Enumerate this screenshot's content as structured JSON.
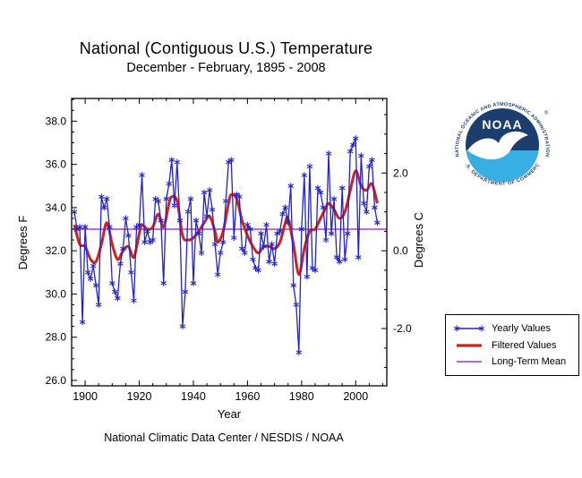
{
  "header": {
    "title": "National (Contiguous U.S.) Temperature",
    "subtitle": "December - February, 1895 - 2008"
  },
  "footer": {
    "xlabel": "Year",
    "caption": "National Climatic Data Center / NESDIS / NOAA"
  },
  "axis_labels": {
    "left": "Degrees F",
    "right": "Degrees C"
  },
  "legend": {
    "items": [
      {
        "label": "Yearly Values",
        "style": "line-asterisk",
        "color": "#2222cc"
      },
      {
        "label": "Filtered Values",
        "style": "thick-line",
        "color": "#cc2222"
      },
      {
        "label": "Long-Term Mean",
        "style": "line",
        "color": "#9933cc"
      }
    ]
  },
  "logo": {
    "acronym": "NOAA",
    "arc_top": "NATIONAL OCEANIC AND ATMOSPHERIC ADMINISTRATION",
    "arc_bottom": "U.S. DEPARTMENT OF COMMERCE",
    "registered": "®",
    "navy": "#1c3e6e",
    "light_blue": "#38afe3"
  },
  "chart_data": {
    "type": "line",
    "title": "National (Contiguous U.S.) Temperature",
    "subtitle": "December - February, 1895 - 2008",
    "xlabel": "Year",
    "ylabel_left": "Degrees F",
    "ylabel_right": "Degrees C",
    "xlim": [
      1895,
      2011.5
    ],
    "ylim_f": [
      25.75,
      39.05
    ],
    "x_ticks_major": [
      1900,
      1920,
      1940,
      1960,
      1980,
      2000
    ],
    "x_minor_step": 5,
    "y_ticks_f": [
      26.0,
      28.0,
      30.0,
      32.0,
      34.0,
      36.0,
      38.0
    ],
    "y_minor_step_f": 0.5,
    "y_ticks_c": [
      -2.0,
      0.0,
      2.0
    ],
    "y_minor_step_c": 0.5,
    "c_axis_conversion": "C = (F - 32) / 1.8",
    "grid": false,
    "legend_position": "outside-right-bottom",
    "long_term_mean_f": 33.0,
    "colors": {
      "yearly": "#2222cc",
      "filtered": "#cc2222",
      "mean": "#9933cc"
    },
    "years": [
      1896,
      1897,
      1898,
      1899,
      1900,
      1901,
      1902,
      1903,
      1904,
      1905,
      1906,
      1907,
      1908,
      1909,
      1910,
      1911,
      1912,
      1913,
      1914,
      1915,
      1916,
      1917,
      1918,
      1919,
      1920,
      1921,
      1922,
      1923,
      1924,
      1925,
      1926,
      1927,
      1928,
      1929,
      1930,
      1931,
      1932,
      1933,
      1934,
      1935,
      1936,
      1937,
      1938,
      1939,
      1940,
      1941,
      1942,
      1943,
      1944,
      1945,
      1946,
      1947,
      1948,
      1949,
      1950,
      1951,
      1952,
      1953,
      1954,
      1955,
      1956,
      1957,
      1958,
      1959,
      1960,
      1961,
      1962,
      1963,
      1964,
      1965,
      1966,
      1967,
      1968,
      1969,
      1970,
      1971,
      1972,
      1973,
      1974,
      1975,
      1976,
      1977,
      1978,
      1979,
      1980,
      1981,
      1982,
      1983,
      1984,
      1985,
      1986,
      1987,
      1988,
      1989,
      1990,
      1991,
      1992,
      1993,
      1994,
      1995,
      1996,
      1997,
      1998,
      1999,
      2000,
      2001,
      2002,
      2003,
      2004,
      2005,
      2006,
      2007,
      2008
    ],
    "series": [
      {
        "name": "Yearly Values",
        "units": "degrees F",
        "values": [
          33.8,
          33.0,
          33.1,
          28.7,
          33.1,
          31.0,
          30.7,
          31.3,
          30.4,
          29.5,
          34.5,
          34.0,
          34.4,
          33.1,
          30.5,
          30.1,
          29.8,
          31.4,
          32.1,
          33.5,
          32.7,
          31.0,
          29.7,
          33.1,
          33.2,
          35.5,
          32.4,
          32.9,
          32.4,
          32.5,
          34.4,
          34.3,
          33.4,
          30.5,
          34.4,
          35.1,
          36.2,
          34.1,
          36.1,
          33.4,
          28.5,
          30.1,
          33.8,
          34.4,
          30.5,
          33.4,
          32.8,
          31.9,
          34.7,
          33.6,
          34.8,
          33.9,
          32.3,
          30.9,
          31.9,
          32.4,
          34.3,
          36.1,
          36.2,
          32.6,
          34.6,
          34.5,
          32.1,
          31.9,
          33.2,
          33.0,
          31.6,
          31.2,
          31.1,
          32.8,
          32.2,
          33.2,
          31.5,
          32.3,
          31.4,
          32.8,
          32.9,
          33.7,
          34.0,
          33.3,
          35.0,
          30.4,
          29.5,
          27.3,
          33.0,
          35.5,
          30.8,
          35.9,
          31.2,
          31.1,
          34.9,
          34.7,
          34.0,
          32.5,
          36.5,
          32.8,
          34.4,
          31.7,
          31.5,
          34.9,
          31.6,
          32.8,
          36.6,
          36.9,
          37.2,
          31.7,
          36.4,
          34.2,
          33.8,
          35.9,
          36.2,
          34.0,
          33.3
        ]
      },
      {
        "name": "Filtered Values",
        "units": "degrees F",
        "keypoints": [
          [
            1896,
            33.2
          ],
          [
            1898,
            32.3
          ],
          [
            1900,
            32.2
          ],
          [
            1902,
            31.6
          ],
          [
            1904,
            31.5
          ],
          [
            1906,
            32.3
          ],
          [
            1908,
            33.3
          ],
          [
            1910,
            32.3
          ],
          [
            1912,
            31.6
          ],
          [
            1914,
            32.0
          ],
          [
            1916,
            32.2
          ],
          [
            1918,
            31.7
          ],
          [
            1920,
            32.8
          ],
          [
            1921,
            33.2
          ],
          [
            1923,
            33.0
          ],
          [
            1925,
            33.1
          ],
          [
            1927,
            33.7
          ],
          [
            1929,
            33.1
          ],
          [
            1931,
            34.2
          ],
          [
            1932,
            34.5
          ],
          [
            1934,
            34.3
          ],
          [
            1936,
            32.7
          ],
          [
            1938,
            32.5
          ],
          [
            1940,
            32.6
          ],
          [
            1942,
            32.9
          ],
          [
            1944,
            33.3
          ],
          [
            1946,
            33.6
          ],
          [
            1948,
            32.9
          ],
          [
            1949,
            32.4
          ],
          [
            1951,
            32.9
          ],
          [
            1953,
            34.2
          ],
          [
            1954,
            34.6
          ],
          [
            1956,
            34.4
          ],
          [
            1958,
            33.4
          ],
          [
            1960,
            32.7
          ],
          [
            1962,
            32.2
          ],
          [
            1964,
            31.9
          ],
          [
            1966,
            32.2
          ],
          [
            1968,
            32.2
          ],
          [
            1970,
            32.1
          ],
          [
            1972,
            32.4
          ],
          [
            1974,
            33.3
          ],
          [
            1975,
            33.5
          ],
          [
            1977,
            32.3
          ],
          [
            1979,
            30.9
          ],
          [
            1981,
            32.1
          ],
          [
            1983,
            32.9
          ],
          [
            1985,
            33.0
          ],
          [
            1987,
            33.5
          ],
          [
            1989,
            34.0
          ],
          [
            1990,
            34.2
          ],
          [
            1992,
            33.9
          ],
          [
            1994,
            33.5
          ],
          [
            1996,
            33.8
          ],
          [
            1998,
            34.8
          ],
          [
            2000,
            35.7
          ],
          [
            2002,
            35.0
          ],
          [
            2004,
            34.8
          ],
          [
            2006,
            35.1
          ],
          [
            2008,
            34.2
          ]
        ]
      },
      {
        "name": "Long-Term Mean",
        "units": "degrees F",
        "value": 33.0
      }
    ]
  }
}
